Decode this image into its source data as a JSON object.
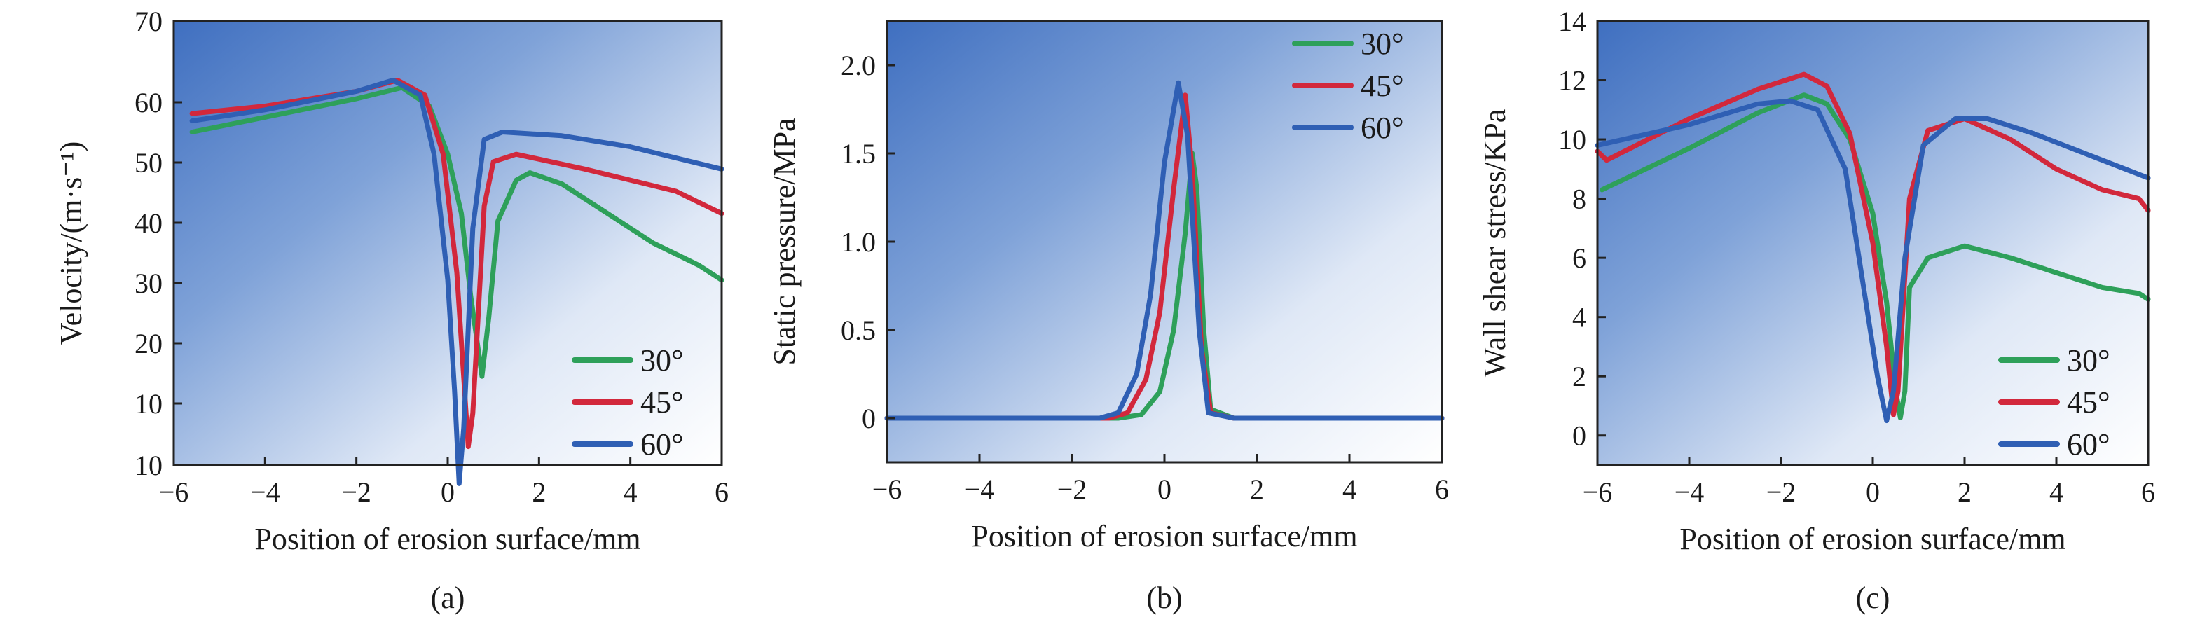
{
  "chart_data": [
    {
      "type": "line",
      "panel": "(a)",
      "xlabel": "Position of erosion surface/mm",
      "ylabel": "Velocity/(m·s⁻¹)",
      "xlim": [
        -6,
        6
      ],
      "ylim": [
        10,
        70
      ],
      "xticks": [
        "−6",
        "−4",
        "−2",
        "0",
        "2",
        "4",
        "6"
      ],
      "yticks": [
        "10",
        "10",
        "20",
        "30",
        "40",
        "50",
        "60",
        "70"
      ],
      "legend_position": "bottom-right",
      "series": [
        {
          "name": "30°",
          "color": "#2ea05a",
          "points": [
            [
              -5.6,
              55
            ],
            [
              -4,
              57
            ],
            [
              -2,
              59.5
            ],
            [
              -1,
              61
            ],
            [
              -0.4,
              58.5
            ],
            [
              0,
              52
            ],
            [
              0.3,
              44
            ],
            [
              0.5,
              33
            ],
            [
              0.75,
              22
            ],
            [
              0.9,
              30
            ],
            [
              1.1,
              43
            ],
            [
              1.5,
              48.5
            ],
            [
              1.8,
              49.5
            ],
            [
              2.5,
              48
            ],
            [
              3.5,
              44
            ],
            [
              4.5,
              40
            ],
            [
              5.5,
              37
            ],
            [
              6,
              35
            ]
          ]
        },
        {
          "name": "45°",
          "color": "#d2283c",
          "points": [
            [
              -5.6,
              57.5
            ],
            [
              -4,
              58.5
            ],
            [
              -2,
              60.5
            ],
            [
              -1.1,
              62
            ],
            [
              -0.5,
              60
            ],
            [
              -0.1,
              52
            ],
            [
              0.2,
              36
            ],
            [
              0.45,
              12.5
            ],
            [
              0.55,
              17
            ],
            [
              0.8,
              45
            ],
            [
              1,
              51
            ],
            [
              1.5,
              52
            ],
            [
              3,
              50
            ],
            [
              5,
              47
            ],
            [
              6,
              44
            ]
          ]
        },
        {
          "name": "60°",
          "color": "#2f5fb4",
          "points": [
            [
              -5.6,
              56.5
            ],
            [
              -4,
              58
            ],
            [
              -2,
              60.5
            ],
            [
              -1.2,
              62
            ],
            [
              -0.6,
              60
            ],
            [
              -0.3,
              52
            ],
            [
              0,
              35
            ],
            [
              0.15,
              20
            ],
            [
              0.25,
              7.5
            ],
            [
              0.35,
              15
            ],
            [
              0.55,
              42
            ],
            [
              0.8,
              54
            ],
            [
              1.2,
              55
            ],
            [
              2.5,
              54.5
            ],
            [
              4,
              53
            ],
            [
              5,
              51.5
            ],
            [
              6,
              50
            ]
          ]
        }
      ]
    },
    {
      "type": "line",
      "panel": "(b)",
      "xlabel": "Position of erosion surface/mm",
      "ylabel": "Static pressure/MPa",
      "xlim": [
        -6,
        6
      ],
      "ylim": [
        -0.25,
        2.25
      ],
      "xticks": [
        "−6",
        "−4",
        "−2",
        "0",
        "2",
        "4",
        "6"
      ],
      "yticks": [
        "0",
        "0.5",
        "1.0",
        "1.5",
        "2.0"
      ],
      "legend_position": "top-right",
      "series": [
        {
          "name": "30°",
          "color": "#2ea05a",
          "points": [
            [
              -6,
              0
            ],
            [
              -1,
              0
            ],
            [
              -0.5,
              0.02
            ],
            [
              -0.1,
              0.15
            ],
            [
              0.2,
              0.5
            ],
            [
              0.45,
              1.05
            ],
            [
              0.6,
              1.5
            ],
            [
              0.7,
              1.3
            ],
            [
              0.85,
              0.5
            ],
            [
              1,
              0.05
            ],
            [
              1.5,
              0
            ],
            [
              6,
              0
            ]
          ]
        },
        {
          "name": "45°",
          "color": "#d2283c",
          "points": [
            [
              -6,
              0
            ],
            [
              -1.2,
              0
            ],
            [
              -0.8,
              0.03
            ],
            [
              -0.4,
              0.22
            ],
            [
              -0.1,
              0.6
            ],
            [
              0.2,
              1.3
            ],
            [
              0.45,
              1.83
            ],
            [
              0.6,
              1.4
            ],
            [
              0.8,
              0.4
            ],
            [
              1,
              0.03
            ],
            [
              1.5,
              0
            ],
            [
              6,
              0
            ]
          ]
        },
        {
          "name": "60°",
          "color": "#2f5fb4",
          "points": [
            [
              -6,
              0
            ],
            [
              -1.4,
              0
            ],
            [
              -1,
              0.03
            ],
            [
              -0.6,
              0.25
            ],
            [
              -0.3,
              0.7
            ],
            [
              0,
              1.45
            ],
            [
              0.3,
              1.9
            ],
            [
              0.5,
              1.6
            ],
            [
              0.75,
              0.5
            ],
            [
              0.95,
              0.03
            ],
            [
              1.5,
              0
            ],
            [
              6,
              0
            ]
          ]
        }
      ]
    },
    {
      "type": "line",
      "panel": "(c)",
      "xlabel": "Position of erosion surface/mm",
      "ylabel": "Wall shear stress/KPa",
      "xlim": [
        -6,
        6
      ],
      "ylim": [
        -1,
        14
      ],
      "xticks": [
        "−6",
        "−4",
        "−2",
        "0",
        "2",
        "4",
        "6"
      ],
      "yticks": [
        "0",
        "2",
        "4",
        "6",
        "8",
        "10",
        "12",
        "14"
      ],
      "legend_position": "bottom-right",
      "series": [
        {
          "name": "30°",
          "color": "#2ea05a",
          "points": [
            [
              -5.9,
              8.3
            ],
            [
              -4,
              9.7
            ],
            [
              -2.5,
              10.9
            ],
            [
              -1.5,
              11.5
            ],
            [
              -1,
              11.2
            ],
            [
              -0.5,
              10
            ],
            [
              0,
              7.5
            ],
            [
              0.3,
              4.5
            ],
            [
              0.5,
              1.5
            ],
            [
              0.6,
              0.6
            ],
            [
              0.7,
              1.5
            ],
            [
              0.8,
              5
            ],
            [
              1.2,
              6
            ],
            [
              2,
              6.4
            ],
            [
              3,
              6
            ],
            [
              4,
              5.5
            ],
            [
              5,
              5
            ],
            [
              5.8,
              4.8
            ],
            [
              6,
              4.6
            ]
          ]
        },
        {
          "name": "45°",
          "color": "#d2283c",
          "points": [
            [
              -6,
              9.6
            ],
            [
              -5.8,
              9.3
            ],
            [
              -4,
              10.7
            ],
            [
              -2.5,
              11.7
            ],
            [
              -1.5,
              12.2
            ],
            [
              -1,
              11.8
            ],
            [
              -0.5,
              10.2
            ],
            [
              0,
              6.5
            ],
            [
              0.3,
              3
            ],
            [
              0.45,
              0.7
            ],
            [
              0.55,
              1.5
            ],
            [
              0.8,
              8
            ],
            [
              1.2,
              10.3
            ],
            [
              2,
              10.7
            ],
            [
              3,
              10
            ],
            [
              4,
              9
            ],
            [
              5,
              8.3
            ],
            [
              5.8,
              8
            ],
            [
              6,
              7.6
            ]
          ]
        },
        {
          "name": "60°",
          "color": "#2f5fb4",
          "points": [
            [
              -6,
              9.8
            ],
            [
              -4,
              10.5
            ],
            [
              -2.5,
              11.2
            ],
            [
              -1.8,
              11.3
            ],
            [
              -1.2,
              11
            ],
            [
              -0.6,
              9
            ],
            [
              -0.2,
              5
            ],
            [
              0.1,
              2
            ],
            [
              0.3,
              0.5
            ],
            [
              0.45,
              1.5
            ],
            [
              0.7,
              6
            ],
            [
              1.1,
              9.8
            ],
            [
              1.8,
              10.7
            ],
            [
              2.5,
              10.7
            ],
            [
              3.5,
              10.2
            ],
            [
              4.5,
              9.6
            ],
            [
              5.5,
              9
            ],
            [
              6,
              8.7
            ]
          ]
        }
      ]
    }
  ]
}
